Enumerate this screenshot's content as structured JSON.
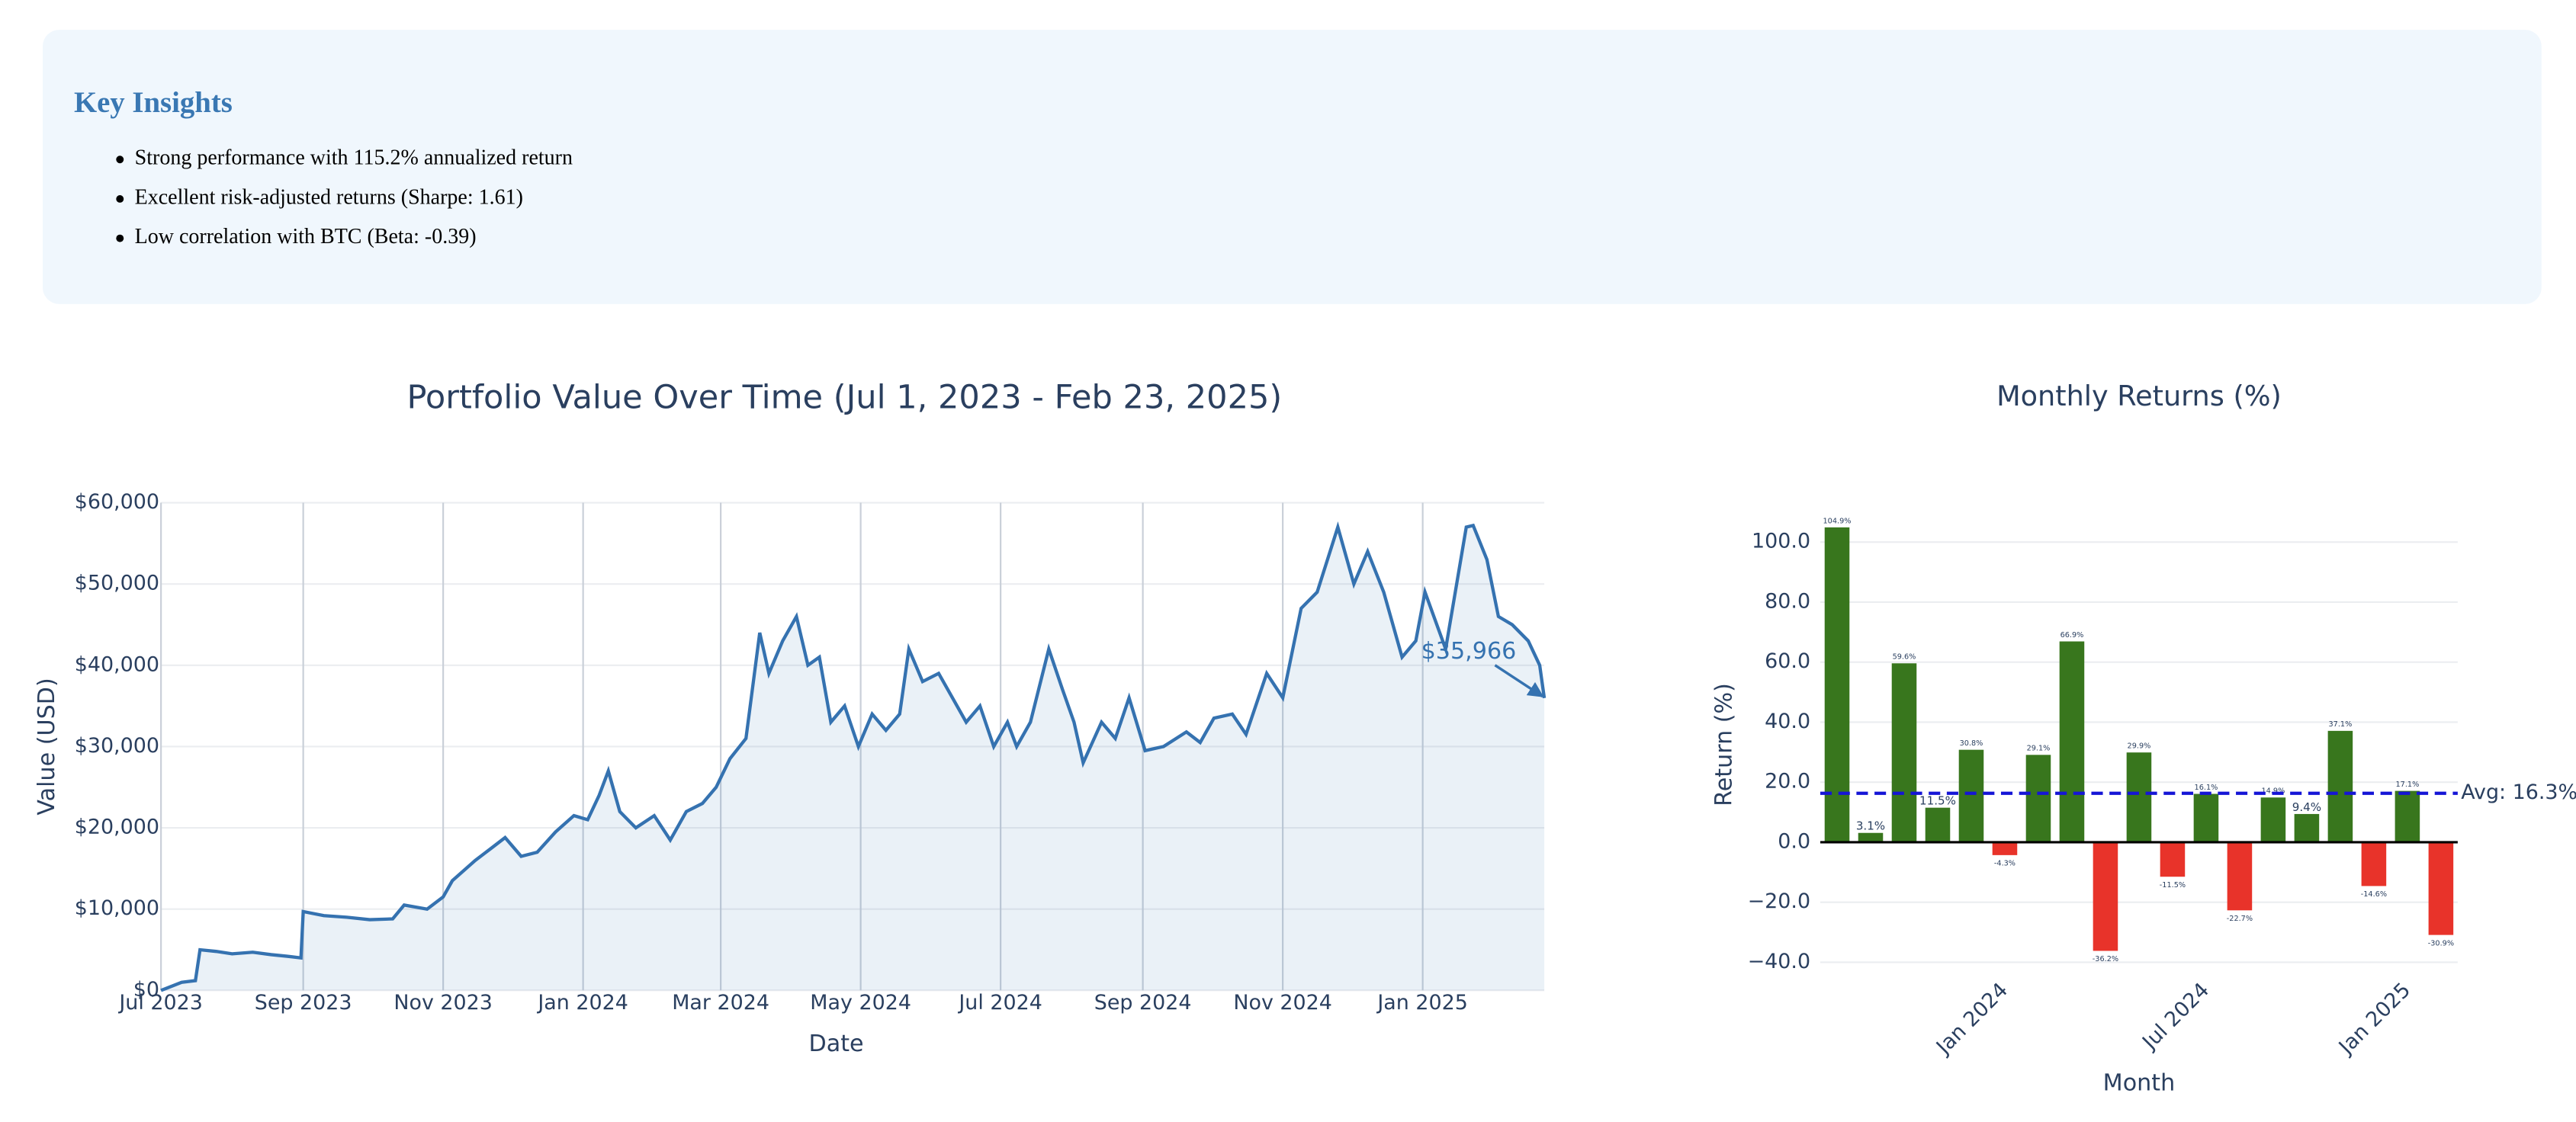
{
  "insights": {
    "title": "Key Insights",
    "items": [
      "Strong performance with 115.2% annualized return",
      "Excellent risk-adjusted returns (Sharpe: 1.61)",
      "Low correlation with BTC (Beta: -0.39)"
    ]
  },
  "chart_data": [
    {
      "type": "line",
      "title": "Portfolio Value Over Time (Jul 1, 2023 - Feb 23, 2025)",
      "xlabel": "Date",
      "ylabel": "Value (USD)",
      "color": "#3572b0",
      "fill": true,
      "grid": true,
      "annotation": "$35,966",
      "x": [
        "2023-07-01",
        "2023-07-10",
        "2023-07-16",
        "2023-07-18",
        "2023-07-25",
        "2023-08-01",
        "2023-08-10",
        "2023-08-18",
        "2023-08-25",
        "2023-08-31",
        "2023-09-01",
        "2023-09-10",
        "2023-09-20",
        "2023-09-30",
        "2023-10-10",
        "2023-10-15",
        "2023-10-25",
        "2023-11-01",
        "2023-11-05",
        "2023-11-15",
        "2023-11-22",
        "2023-11-28",
        "2023-12-05",
        "2023-12-12",
        "2023-12-20",
        "2023-12-28",
        "2024-01-03",
        "2024-01-08",
        "2024-01-12",
        "2024-01-17",
        "2024-01-24",
        "2024-02-01",
        "2024-02-08",
        "2024-02-15",
        "2024-02-22",
        "2024-02-28",
        "2024-03-05",
        "2024-03-12",
        "2024-03-18",
        "2024-03-22",
        "2024-03-28",
        "2024-04-03",
        "2024-04-08",
        "2024-04-13",
        "2024-04-18",
        "2024-04-24",
        "2024-04-30",
        "2024-05-06",
        "2024-05-12",
        "2024-05-18",
        "2024-05-22",
        "2024-05-28",
        "2024-06-04",
        "2024-06-10",
        "2024-06-16",
        "2024-06-22",
        "2024-06-28",
        "2024-07-04",
        "2024-07-08",
        "2024-07-14",
        "2024-07-22",
        "2024-07-28",
        "2024-08-02",
        "2024-08-06",
        "2024-08-14",
        "2024-08-20",
        "2024-08-26",
        "2024-09-02",
        "2024-09-10",
        "2024-09-20",
        "2024-09-26",
        "2024-10-02",
        "2024-10-10",
        "2024-10-16",
        "2024-10-25",
        "2024-11-01",
        "2024-11-09",
        "2024-11-16",
        "2024-11-25",
        "2024-12-02",
        "2024-12-08",
        "2024-12-15",
        "2024-12-23",
        "2024-12-29",
        "2025-01-02",
        "2025-01-11",
        "2025-01-20",
        "2025-01-23",
        "2025-01-29",
        "2025-02-03",
        "2025-02-09",
        "2025-02-16",
        "2025-02-21",
        "2025-02-23"
      ],
      "values": [
        0,
        1000,
        1200,
        5000,
        4800,
        4500,
        4700,
        4400,
        4200,
        4000,
        9700,
        9200,
        9000,
        8700,
        8800,
        10500,
        10000,
        11500,
        13500,
        16000,
        17500,
        18800,
        16500,
        17000,
        19500,
        21500,
        21000,
        24000,
        27000,
        22000,
        20000,
        21500,
        18500,
        22000,
        23000,
        25000,
        28500,
        31000,
        44000,
        39000,
        43000,
        46000,
        40000,
        41000,
        33000,
        35000,
        30000,
        34000,
        32000,
        34000,
        42000,
        38000,
        39000,
        36000,
        33000,
        35000,
        30000,
        33000,
        30000,
        33000,
        42000,
        37000,
        33000,
        28000,
        33000,
        31000,
        36000,
        29500,
        30000,
        31800,
        30500,
        33500,
        34000,
        31500,
        39000,
        36000,
        47000,
        49000,
        57000,
        50000,
        54000,
        49000,
        41000,
        43000,
        49000,
        42000,
        57000,
        57200,
        53000,
        46000,
        45000,
        43000,
        40000,
        35966
      ],
      "xlim": [
        "2023-07-01",
        "2025-02-23"
      ],
      "xticks": [
        {
          "value": "2023-07-01",
          "label": "Jul 2023"
        },
        {
          "value": "2023-09-01",
          "label": "Sep 2023"
        },
        {
          "value": "2023-11-01",
          "label": "Nov 2023"
        },
        {
          "value": "2024-01-01",
          "label": "Jan 2024"
        },
        {
          "value": "2024-03-01",
          "label": "Mar 2024"
        },
        {
          "value": "2024-05-01",
          "label": "May 2024"
        },
        {
          "value": "2024-07-01",
          "label": "Jul 2024"
        },
        {
          "value": "2024-09-01",
          "label": "Sep 2024"
        },
        {
          "value": "2024-11-01",
          "label": "Nov 2024"
        },
        {
          "value": "2025-01-01",
          "label": "Jan 2025"
        }
      ],
      "ylim": [
        0,
        60000
      ],
      "yticks": [
        {
          "value": 0,
          "label": "$0"
        },
        {
          "value": 10000,
          "label": "$10,000"
        },
        {
          "value": 20000,
          "label": "$20,000"
        },
        {
          "value": 30000,
          "label": "$30,000"
        },
        {
          "value": 40000,
          "label": "$40,000"
        },
        {
          "value": 50000,
          "label": "$50,000"
        },
        {
          "value": 60000,
          "label": "$60,000"
        }
      ]
    },
    {
      "type": "bar",
      "title": "Monthly Returns (%)",
      "xlabel": "Month",
      "ylabel": "Return (%)",
      "positive_color": "#38761d",
      "negative_color": "#e8332a",
      "grid": true,
      "x": [
        "2023-08",
        "2023-09",
        "2023-10",
        "2023-11",
        "2023-12",
        "2024-01",
        "2024-02",
        "2024-03",
        "2024-04",
        "2024-05",
        "2024-06",
        "2024-07",
        "2024-08",
        "2024-09",
        "2024-10",
        "2024-11",
        "2024-12",
        "2025-01",
        "2025-02"
      ],
      "values": [
        104.9,
        3.1,
        59.6,
        11.5,
        30.8,
        -4.3,
        29.1,
        66.9,
        -36.2,
        29.9,
        -11.5,
        16.1,
        -22.7,
        14.9,
        9.4,
        37.1,
        -14.6,
        17.1,
        -30.9
      ],
      "value_labels": [
        "104.9%",
        "3.1%",
        "59.6%",
        "11.5%",
        "30.8%",
        "-4.3%",
        "29.1%",
        "66.9%",
        "-36.2%",
        "29.9%",
        "-11.5%",
        "16.1%",
        "-22.7%",
        "14.9%",
        "9.4%",
        "37.1%",
        "-14.6%",
        "17.1%",
        "-30.9%"
      ],
      "average": 16.3,
      "average_label": "Avg: 16.3%",
      "average_color": "#1515d6",
      "xlim": [
        "2023-08",
        "2025-02"
      ],
      "xticks": [
        {
          "value": "2024-01",
          "label": "Jan 2024"
        },
        {
          "value": "2024-07",
          "label": "Jul 2024"
        },
        {
          "value": "2025-01",
          "label": "Jan 2025"
        }
      ],
      "ylim": [
        -45,
        110
      ],
      "yticks": [
        {
          "value": -40,
          "label": "−40.0"
        },
        {
          "value": -20,
          "label": "−20.0"
        },
        {
          "value": 0,
          "label": "0.0"
        },
        {
          "value": 20,
          "label": "20.0"
        },
        {
          "value": 40,
          "label": "40.0"
        },
        {
          "value": 60,
          "label": "60.0"
        },
        {
          "value": 80,
          "label": "80.0"
        },
        {
          "value": 100,
          "label": "100.0"
        }
      ]
    }
  ]
}
